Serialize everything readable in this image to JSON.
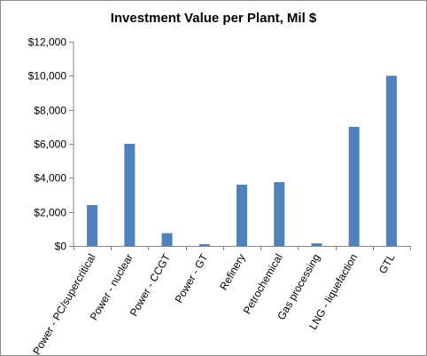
{
  "chart_data": {
    "type": "bar",
    "title": "Investment Value per Plant, Mil $",
    "xlabel": "",
    "ylabel": "",
    "categories": [
      "Power - PC/supercritical",
      "Power - nuclear",
      "Power - CCGT",
      "Power - GT",
      "Refinery",
      "Petrochemical",
      "Gas processing",
      "LNG - liquefaction",
      "GTL"
    ],
    "series": [
      {
        "values": [
          2400,
          6000,
          750,
          100,
          3600,
          3750,
          150,
          7000,
          10000
        ]
      }
    ],
    "ylim": [
      0,
      12000
    ],
    "yticks": [
      0,
      2000,
      4000,
      6000,
      8000,
      10000,
      12000
    ],
    "ytick_labels": [
      "$0",
      "$2,000",
      "$4,000",
      "$6,000",
      "$8,000",
      "$10,000",
      "$12,000"
    ],
    "grid": false,
    "legend": "none",
    "bar_color": "#4f81bd",
    "axis_color": "#868686"
  }
}
